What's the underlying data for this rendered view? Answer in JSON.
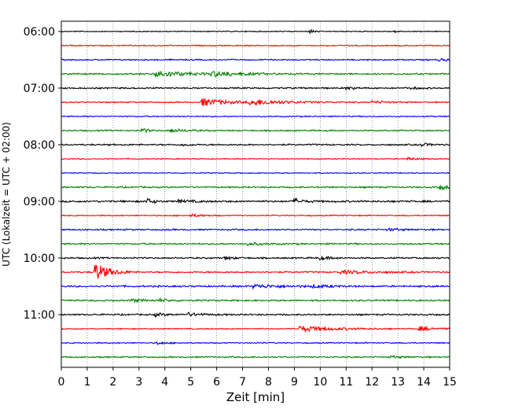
{
  "chart_data": {
    "type": "line",
    "subtype": "helicorder",
    "title": "",
    "xlabel": "Zeit  [min]",
    "ylabel": "UTC (Lokalzeit = UTC + 02:00)",
    "xlim": [
      0,
      15
    ],
    "x_ticks": [
      0,
      1,
      2,
      3,
      4,
      5,
      6,
      7,
      8,
      9,
      10,
      11,
      12,
      13,
      14,
      15
    ],
    "x_tick_labels": [
      "0",
      "1",
      "2",
      "3",
      "4",
      "5",
      "6",
      "7",
      "8",
      "9",
      "10",
      "11",
      "12",
      "13",
      "14",
      "15"
    ],
    "y_tick_labels": [
      "06:00",
      "07:00",
      "08:00",
      "09:00",
      "10:00",
      "11:00"
    ],
    "trace_interval_minutes": 15,
    "start_time": "06:00",
    "trace_count": 24,
    "grid": "vertical dotted",
    "colors": [
      "#000000",
      "#ff0000",
      "#0000ff",
      "#008000"
    ],
    "traces": [
      {
        "row": 0,
        "base_amp": 0.5,
        "events": [
          {
            "t": 9.6,
            "amp": 2.5,
            "dur": 0.15
          },
          {
            "t": 12.9,
            "amp": 2.0,
            "dur": 0.12
          }
        ]
      },
      {
        "row": 1,
        "base_amp": 0.6,
        "events": []
      },
      {
        "row": 2,
        "base_amp": 0.7,
        "events": [
          {
            "t": 14.6,
            "amp": 1.5,
            "dur": 0.4
          }
        ]
      },
      {
        "row": 3,
        "base_amp": 0.8,
        "events": [
          {
            "t": 3.6,
            "amp": 4.5,
            "dur": 1.0
          },
          {
            "t": 5.8,
            "amp": 3.0,
            "dur": 1.2
          }
        ]
      },
      {
        "row": 4,
        "base_amp": 0.8,
        "events": [
          {
            "t": 11.0,
            "amp": 1.5,
            "dur": 0.3
          },
          {
            "t": 13.5,
            "amp": 1.2,
            "dur": 0.3
          }
        ]
      },
      {
        "row": 5,
        "base_amp": 0.6,
        "events": [
          {
            "t": 5.4,
            "amp": 5.0,
            "dur": 0.9
          },
          {
            "t": 7.3,
            "amp": 3.5,
            "dur": 1.4
          },
          {
            "t": 12.0,
            "amp": 1.5,
            "dur": 0.6
          }
        ]
      },
      {
        "row": 6,
        "base_amp": 0.6,
        "events": []
      },
      {
        "row": 7,
        "base_amp": 0.7,
        "events": [
          {
            "t": 3.1,
            "amp": 3.0,
            "dur": 0.25
          },
          {
            "t": 4.2,
            "amp": 2.0,
            "dur": 0.6
          }
        ]
      },
      {
        "row": 8,
        "base_amp": 0.8,
        "events": [
          {
            "t": 4.7,
            "amp": 2.0,
            "dur": 0.2
          },
          {
            "t": 13.9,
            "amp": 2.0,
            "dur": 0.3
          }
        ]
      },
      {
        "row": 9,
        "base_amp": 0.5,
        "events": [
          {
            "t": 13.4,
            "amp": 2.0,
            "dur": 0.3
          }
        ]
      },
      {
        "row": 10,
        "base_amp": 0.5,
        "events": []
      },
      {
        "row": 11,
        "base_amp": 0.8,
        "events": [
          {
            "t": 14.6,
            "amp": 3.0,
            "dur": 0.4
          }
        ]
      },
      {
        "row": 12,
        "base_amp": 1.0,
        "events": [
          {
            "t": 3.3,
            "amp": 3.5,
            "dur": 0.25
          },
          {
            "t": 9.0,
            "amp": 3.0,
            "dur": 0.3
          },
          {
            "t": 4.5,
            "amp": 1.5,
            "dur": 0.5
          }
        ]
      },
      {
        "row": 13,
        "base_amp": 0.6,
        "events": [
          {
            "t": 5.0,
            "amp": 1.5,
            "dur": 0.5
          }
        ]
      },
      {
        "row": 14,
        "base_amp": 0.8,
        "events": [
          {
            "t": 12.6,
            "amp": 1.5,
            "dur": 0.5
          }
        ]
      },
      {
        "row": 15,
        "base_amp": 0.8,
        "events": [
          {
            "t": 7.2,
            "amp": 1.5,
            "dur": 0.6
          }
        ]
      },
      {
        "row": 16,
        "base_amp": 0.8,
        "events": [
          {
            "t": 10.0,
            "amp": 2.5,
            "dur": 0.3
          },
          {
            "t": 6.3,
            "amp": 1.5,
            "dur": 0.4
          }
        ]
      },
      {
        "row": 17,
        "base_amp": 0.8,
        "events": [
          {
            "t": 1.3,
            "amp": 12.0,
            "dur": 0.5
          },
          {
            "t": 10.8,
            "amp": 2.0,
            "dur": 1.2
          }
        ]
      },
      {
        "row": 18,
        "base_amp": 0.9,
        "events": [
          {
            "t": 7.4,
            "amp": 2.0,
            "dur": 1.2
          },
          {
            "t": 9.7,
            "amp": 1.5,
            "dur": 0.6
          }
        ]
      },
      {
        "row": 19,
        "base_amp": 0.8,
        "events": [
          {
            "t": 2.7,
            "amp": 2.0,
            "dur": 0.4
          },
          {
            "t": 3.8,
            "amp": 2.0,
            "dur": 0.3
          }
        ]
      },
      {
        "row": 20,
        "base_amp": 0.8,
        "events": [
          {
            "t": 3.6,
            "amp": 2.0,
            "dur": 0.4
          },
          {
            "t": 4.9,
            "amp": 1.8,
            "dur": 0.6
          }
        ]
      },
      {
        "row": 21,
        "base_amp": 0.6,
        "events": [
          {
            "t": 9.2,
            "amp": 3.5,
            "dur": 1.2
          },
          {
            "t": 13.8,
            "amp": 2.5,
            "dur": 0.6
          }
        ]
      },
      {
        "row": 22,
        "base_amp": 0.6,
        "events": [
          {
            "t": 3.7,
            "amp": 1.8,
            "dur": 0.3
          }
        ]
      },
      {
        "row": 23,
        "base_amp": 0.7,
        "events": [
          {
            "t": 12.7,
            "amp": 1.2,
            "dur": 0.5
          }
        ]
      }
    ]
  }
}
